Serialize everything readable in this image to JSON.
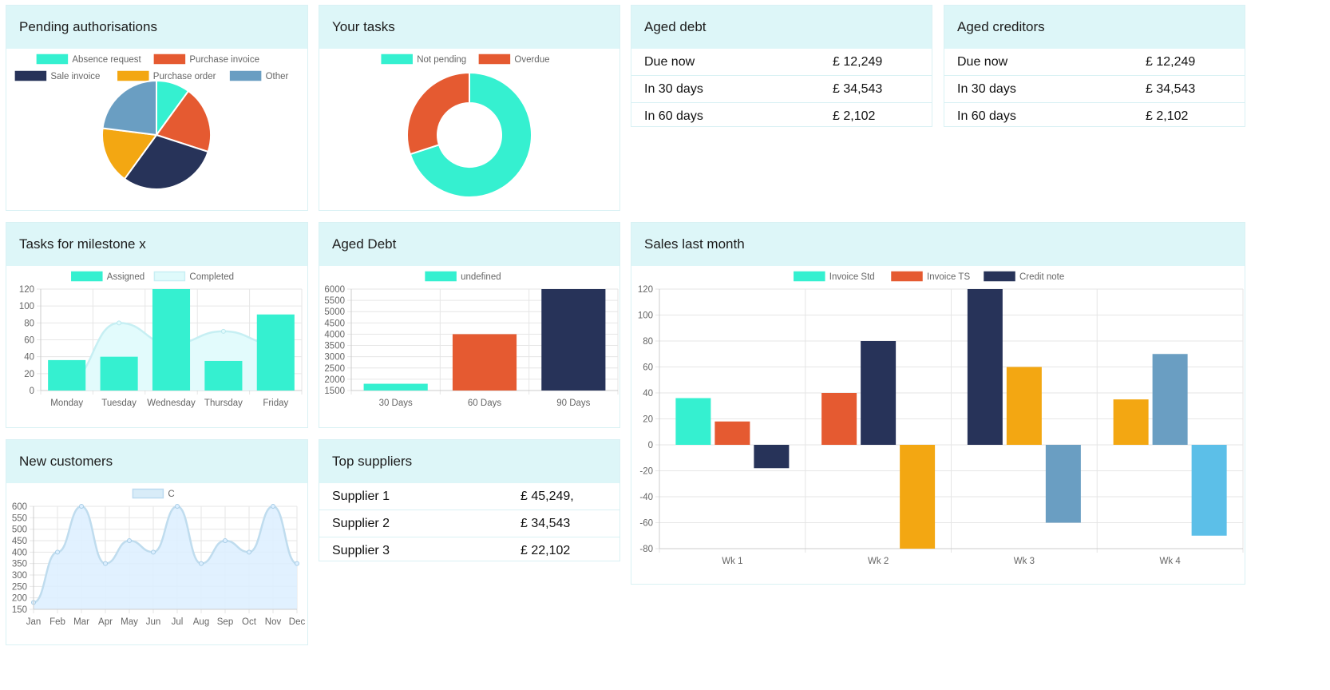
{
  "cards": {
    "pending": {
      "title": "Pending authorisations"
    },
    "tasks": {
      "title": "Your tasks"
    },
    "aged_debt_table": {
      "title": "Aged debt",
      "rows": [
        {
          "label": "Due now",
          "amount": "£ 12,249"
        },
        {
          "label": "In 30 days",
          "amount": "£ 34,543"
        },
        {
          "label": "In 60 days",
          "amount": "£ 2,102"
        }
      ]
    },
    "aged_creditors": {
      "title": "Aged creditors",
      "rows": [
        {
          "label": "Due now",
          "amount": "£ 12,249"
        },
        {
          "label": "In 30 days",
          "amount": "£ 34,543"
        },
        {
          "label": "In 60 days",
          "amount": "£ 2,102"
        }
      ]
    },
    "milestone": {
      "title": "Tasks for milestone x"
    },
    "aged_debt_chart": {
      "title": "Aged Debt"
    },
    "sales": {
      "title": "Sales last month"
    },
    "new_customers": {
      "title": "New customers"
    },
    "top_suppliers": {
      "title": "Top suppliers",
      "rows": [
        {
          "label": "Supplier 1",
          "amount": "£ 45,249,"
        },
        {
          "label": "Supplier 2",
          "amount": "£ 34,543"
        },
        {
          "label": "Supplier 3",
          "amount": "£ 22,102"
        }
      ]
    }
  },
  "colors": {
    "teal": "#35f0d0",
    "red": "#e55a31",
    "navy": "#273359",
    "amber": "#f3a712",
    "steel": "#6a9ec2",
    "sky": "#5cbfe8",
    "pale": "#dffafb",
    "lightblue": "#d8ecf8"
  },
  "chart_data": [
    {
      "id": "pending",
      "type": "pie",
      "labels": [
        "Absence request",
        "Purchase invoice",
        "Sale invoice",
        "Purchase order",
        "Other"
      ],
      "values": [
        10,
        20,
        30,
        17,
        23
      ],
      "colors": [
        "#35f0d0",
        "#e55a31",
        "#273359",
        "#f3a712",
        "#6a9ec2"
      ],
      "legend": "top"
    },
    {
      "id": "tasks",
      "type": "doughnut",
      "labels": [
        "Not pending",
        "Overdue"
      ],
      "values": [
        70,
        30
      ],
      "colors": [
        "#35f0d0",
        "#e55a31"
      ],
      "legend": "top"
    },
    {
      "id": "milestone",
      "type": "bar",
      "categories": [
        "Monday",
        "Tuesday",
        "Wednesday",
        "Thursday",
        "Friday"
      ],
      "series": [
        {
          "name": "Assigned",
          "type": "bar",
          "values": [
            36,
            40,
            120,
            35,
            90
          ],
          "color": "#35f0d0"
        },
        {
          "name": "Completed",
          "type": "area",
          "values": [
            10,
            80,
            55,
            70,
            55
          ],
          "color": "#dffafb"
        }
      ],
      "ylim": [
        0,
        120
      ],
      "yticks": [
        0,
        20,
        40,
        60,
        80,
        100,
        120
      ],
      "legend": "top",
      "grid": true
    },
    {
      "id": "aged_debt_chart",
      "type": "bar",
      "categories": [
        "30 Days",
        "60 Days",
        "90 Days"
      ],
      "series": [
        {
          "name": "undefined",
          "values": [
            1800,
            4000,
            6000
          ],
          "colors": [
            "#35f0d0",
            "#e55a31",
            "#273359"
          ]
        }
      ],
      "ylim": [
        1500,
        6000
      ],
      "yticks": [
        1500,
        2000,
        2500,
        3000,
        3500,
        4000,
        4500,
        5000,
        5500,
        6000
      ],
      "legend": "top",
      "grid": true
    },
    {
      "id": "sales",
      "type": "bar",
      "categories": [
        "Wk 1",
        "Wk 2",
        "Wk 3",
        "Wk 4"
      ],
      "legend_labels": [
        "Invoice Std",
        "Invoice TS",
        "Credit note"
      ],
      "legend_colors": [
        "#35f0d0",
        "#e55a31",
        "#273359"
      ],
      "groups": [
        [
          {
            "value": 36,
            "color": "#35f0d0"
          },
          {
            "value": 18,
            "color": "#e55a31"
          },
          {
            "value": -18,
            "color": "#273359"
          }
        ],
        [
          {
            "value": 40,
            "color": "#e55a31"
          },
          {
            "value": 80,
            "color": "#273359"
          },
          {
            "value": -80,
            "color": "#f3a712"
          }
        ],
        [
          {
            "value": 120,
            "color": "#273359"
          },
          {
            "value": 60,
            "color": "#f3a712"
          },
          {
            "value": -60,
            "color": "#6a9ec2"
          }
        ],
        [
          {
            "value": 35,
            "color": "#f3a712"
          },
          {
            "value": 70,
            "color": "#6a9ec2"
          },
          {
            "value": -70,
            "color": "#5cbfe8"
          }
        ]
      ],
      "ylim": [
        -80,
        120
      ],
      "yticks": [
        -80,
        -60,
        -40,
        -20,
        0,
        20,
        40,
        60,
        80,
        100,
        120
      ],
      "legend": "top",
      "grid": true
    },
    {
      "id": "new_customers",
      "type": "area",
      "categories": [
        "Jan",
        "Feb",
        "Mar",
        "Apr",
        "May",
        "Jun",
        "Jul",
        "Aug",
        "Sep",
        "Oct",
        "Nov",
        "Dec"
      ],
      "series": [
        {
          "name": "C",
          "values": [
            180,
            400,
            600,
            350,
            450,
            400,
            600,
            350,
            450,
            400,
            600,
            350
          ],
          "color": "#d8ecf8"
        }
      ],
      "ylim": [
        150,
        600
      ],
      "yticks": [
        150,
        200,
        250,
        300,
        350,
        400,
        450,
        500,
        550,
        600
      ],
      "legend": "top",
      "grid": true
    }
  ]
}
